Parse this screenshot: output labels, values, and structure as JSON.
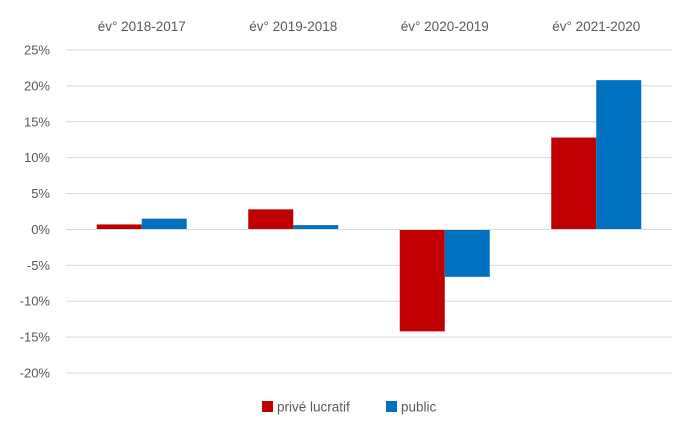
{
  "chart_data": {
    "type": "bar",
    "categories": [
      "év° 2018-2017",
      "év° 2019-2018",
      "év° 2020-2019",
      "év° 2021-2020"
    ],
    "series": [
      {
        "name": "privé lucratif",
        "color": "#C00000",
        "values": [
          0.7,
          2.8,
          -14.2,
          12.8
        ]
      },
      {
        "name": "public",
        "color": "#0070C0",
        "values": [
          1.5,
          0.6,
          -6.6,
          20.8
        ]
      }
    ],
    "ylim": [
      -20,
      25
    ],
    "yticks": [
      25,
      20,
      15,
      10,
      5,
      0,
      -5,
      -10,
      -15,
      -20
    ],
    "ytick_labels": [
      "25%",
      "20%",
      "15%",
      "10%",
      "5%",
      "0%",
      "-5%",
      "-10%",
      "-15%",
      "-20%"
    ],
    "xlabel": "",
    "ylabel": "",
    "title": "",
    "grid": true,
    "legend_position": "bottom",
    "category_labels_position": "top"
  }
}
